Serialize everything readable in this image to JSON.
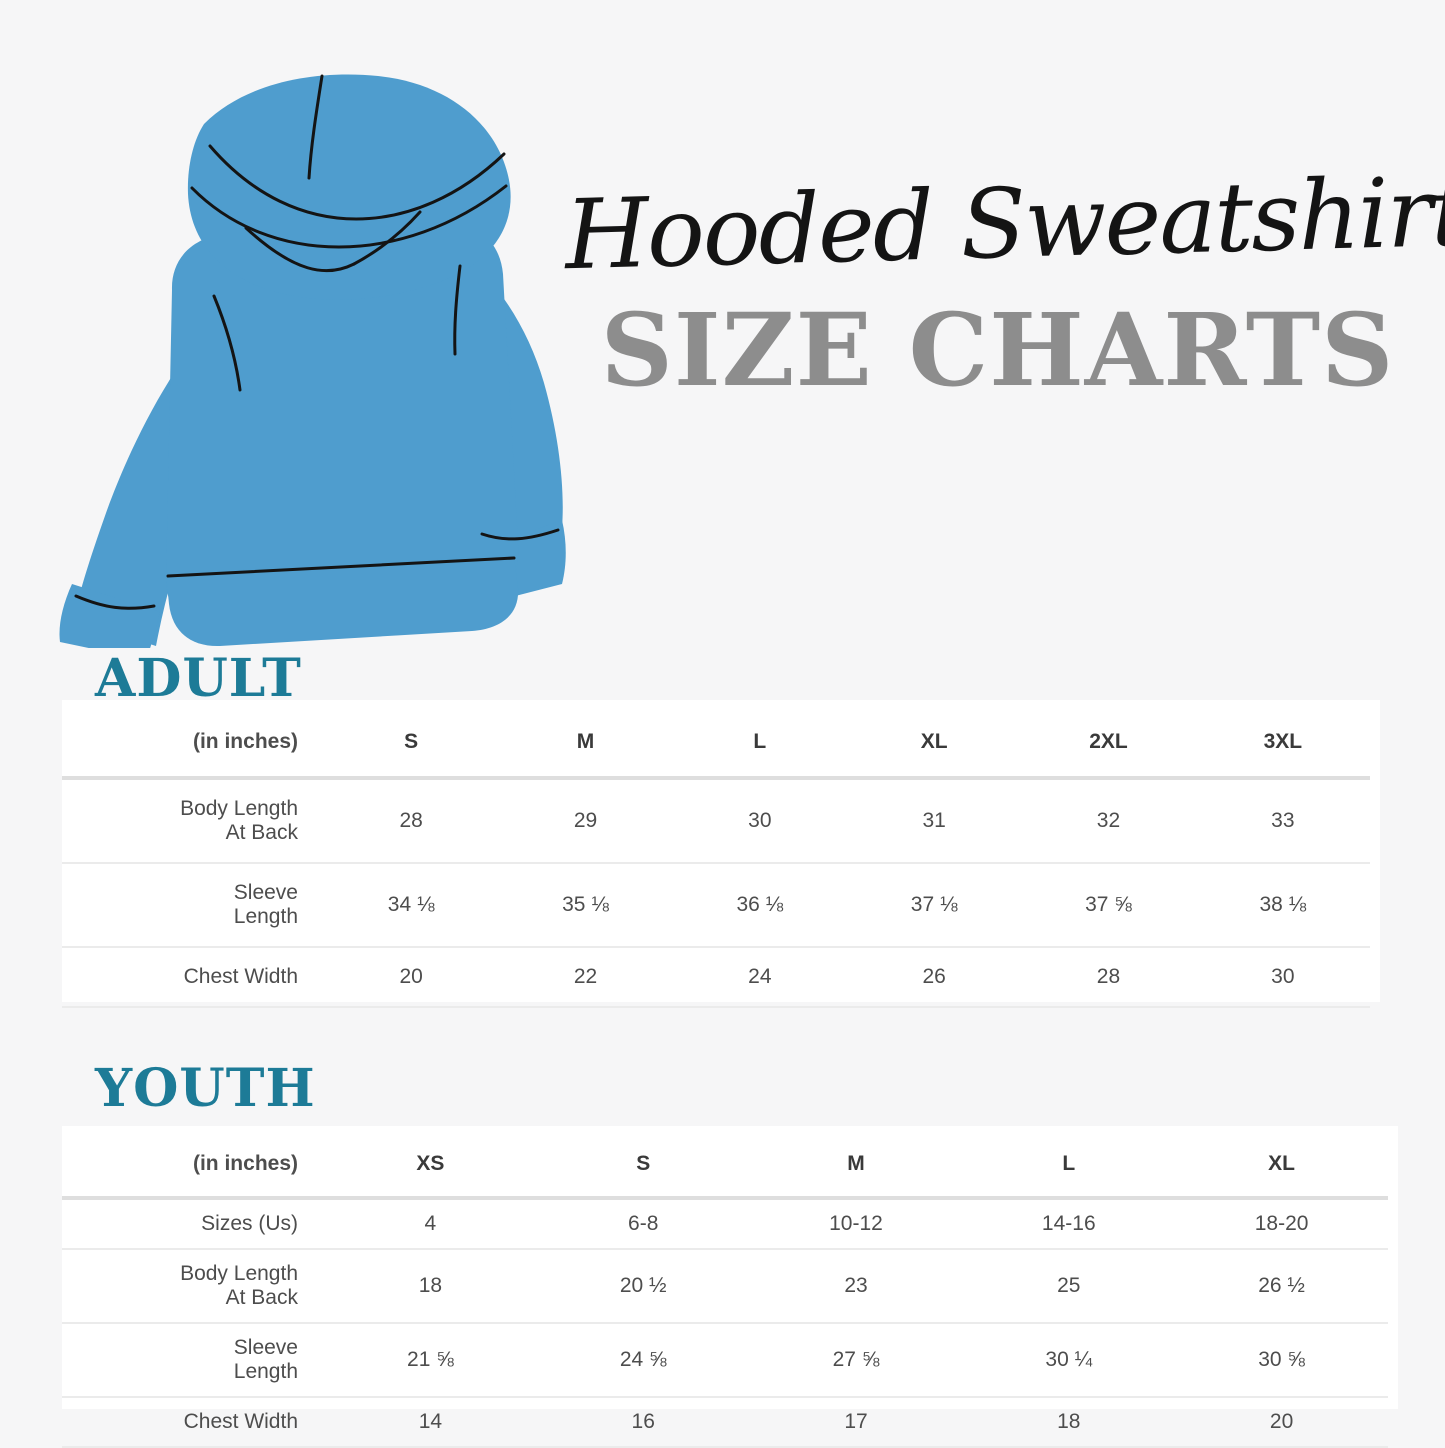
{
  "title": {
    "script": "Hooded Sweatshirt",
    "caps": "SIZE CHARTS"
  },
  "colors": {
    "hoodie_blue": "#4f9dce",
    "seam_black": "#141414",
    "heading_teal": "#1d7b97",
    "caps_gray": "#8d8d8d",
    "page_background": "#f6f6f7"
  },
  "adult_table": {
    "heading": "ADULT",
    "unit_label": "(in inches)",
    "columns": [
      "S",
      "M",
      "L",
      "XL",
      "2XL",
      "3XL"
    ],
    "rows": [
      {
        "label": "Body Length At Back",
        "values": [
          "28",
          "29",
          "30",
          "31",
          "32",
          "33"
        ]
      },
      {
        "label": "Sleeve Length",
        "values": [
          "34 ⅛",
          "35 ⅛",
          "36 ⅛",
          "37 ⅛",
          "37 ⅝",
          "38 ⅛"
        ]
      },
      {
        "label": "Chest Width",
        "values": [
          "20",
          "22",
          "24",
          "26",
          "28",
          "30"
        ]
      }
    ]
  },
  "youth_table": {
    "heading": "YOUTH",
    "unit_label": "(in inches)",
    "columns": [
      "XS",
      "S",
      "M",
      "L",
      "XL"
    ],
    "rows": [
      {
        "label": "Sizes (Us)",
        "values": [
          "4",
          "6-8",
          "10-12",
          "14-16",
          "18-20"
        ]
      },
      {
        "label": "Body Length At Back",
        "values": [
          "18",
          "20 ½",
          "23",
          "25",
          "26 ½"
        ]
      },
      {
        "label": "Sleeve Length",
        "values": [
          "21 ⅝",
          "24 ⅝",
          "27 ⅝",
          "30 ¼",
          "30 ⅝"
        ]
      },
      {
        "label": "Chest Width",
        "values": [
          "14",
          "16",
          "17",
          "18",
          "20"
        ]
      }
    ]
  }
}
